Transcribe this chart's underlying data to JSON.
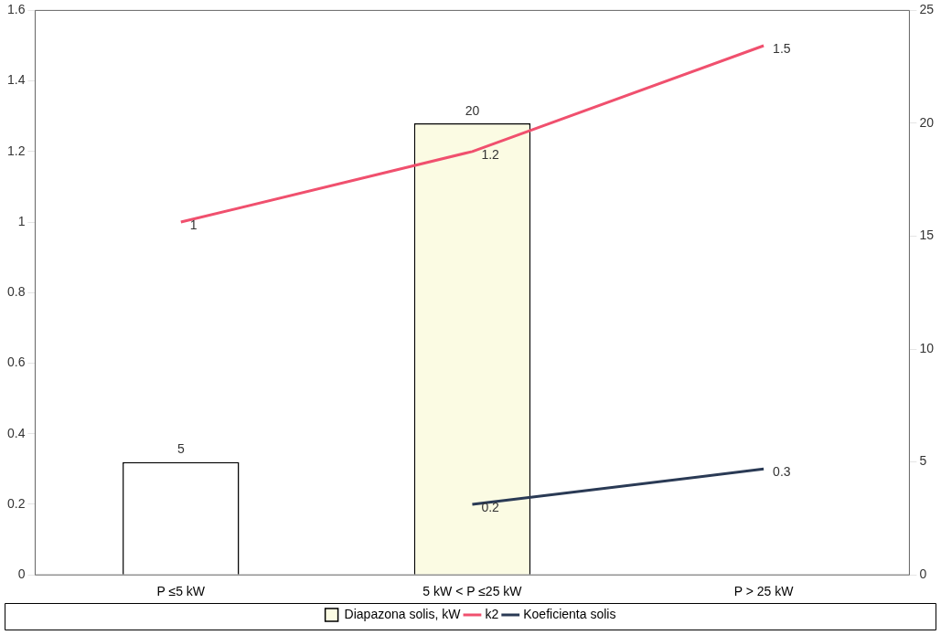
{
  "chart_data": {
    "type": "bar",
    "categories": [
      "P ≤5 kW",
      "5 kW < P ≤25 kW",
      "P > 25 kW"
    ],
    "series": [
      {
        "name": "Diapazona solis, kW",
        "axis": "y2",
        "colors": [
          "#ffffff",
          "#fbfbe3",
          null
        ],
        "color": "#fbfbe3",
        "values": [
          5,
          20,
          null
        ]
      },
      {
        "name": "k2",
        "type": "line",
        "color": "#f0506e",
        "values": [
          1,
          1.2,
          1.5
        ]
      },
      {
        "name": "Koeficienta solis",
        "type": "line",
        "color": "#2a3a55",
        "values": [
          null,
          0.2,
          0.3
        ]
      }
    ],
    "ylim": [
      0,
      1.6
    ],
    "yticks": [
      0,
      0.2,
      0.4,
      0.6,
      0.8,
      1,
      1.2,
      1.4,
      1.6
    ],
    "y2lim": [
      0,
      25
    ],
    "y2ticks": [
      0,
      5,
      10,
      15,
      20,
      25
    ],
    "grid": false,
    "legend": "bottom",
    "marker": "none",
    "data_labels": true
  }
}
